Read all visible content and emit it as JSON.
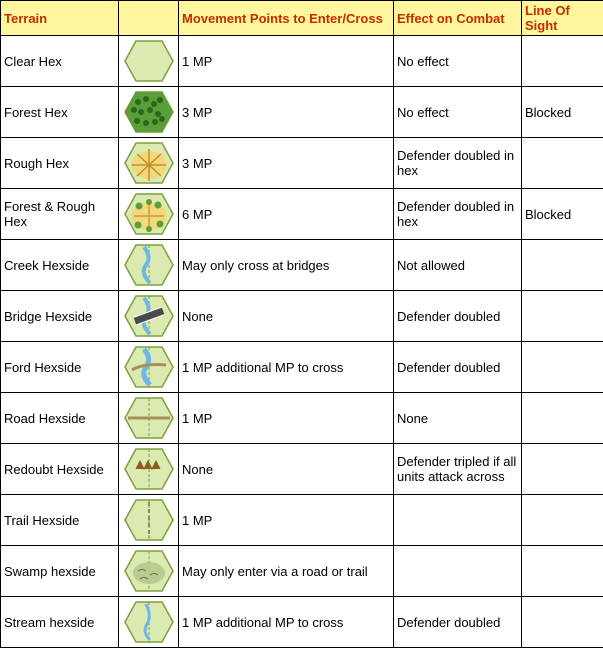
{
  "table": {
    "header": {
      "bg": "#fff69e",
      "color": "#c62d00",
      "columns": [
        "Terrain",
        "",
        "Movement Points to Enter/Cross",
        "Effect on Combat",
        "Line Of Sight"
      ]
    },
    "colors": {
      "hex_fill": "#daeab0",
      "hex_stroke": "#7ea03a",
      "forest_fill": "#5a9e3a",
      "forest_dark": "#2e6619",
      "rough_fill": "#f0d97a",
      "rough_stroke": "#c78a2a",
      "water": "#6eb7e6",
      "bridge": "#4a4a4a",
      "road": "#a8905a",
      "trail": "#8a8a6a",
      "swamp": "#b5c98f",
      "redoubt": "#8b5e1e"
    },
    "rows": [
      {
        "terrain": "Clear Hex",
        "icon": "clear",
        "mp": "1 MP",
        "combat": "No effect",
        "los": ""
      },
      {
        "terrain": "Forest Hex",
        "icon": "forest",
        "mp": "3 MP",
        "combat": "No effect",
        "los": "Blocked"
      },
      {
        "terrain": "Rough Hex",
        "icon": "rough",
        "mp": "3 MP",
        "combat": "Defender doubled in hex",
        "los": ""
      },
      {
        "terrain": "Forest & Rough Hex",
        "icon": "forest_rough",
        "mp": "6 MP",
        "combat": "Defender doubled in hex",
        "los": "Blocked"
      },
      {
        "terrain": "Creek Hexside",
        "icon": "creek",
        "mp": "May only cross at bridges",
        "combat": "Not allowed",
        "los": ""
      },
      {
        "terrain": "Bridge Hexside",
        "icon": "bridge",
        "mp": "None",
        "combat": "Defender doubled",
        "los": ""
      },
      {
        "terrain": "Ford Hexside",
        "icon": "ford",
        "mp": "1 MP additional MP to cross",
        "combat": "Defender doubled",
        "los": ""
      },
      {
        "terrain": "Road Hexside",
        "icon": "road",
        "mp": "1 MP",
        "combat": "None",
        "los": ""
      },
      {
        "terrain": "Redoubt Hexside",
        "icon": "redoubt",
        "mp": "None",
        "combat": "Defender tripled if all units attack across",
        "los": ""
      },
      {
        "terrain": "Trail Hexside",
        "icon": "trail",
        "mp": "1 MP",
        "combat": "",
        "los": ""
      },
      {
        "terrain": "Swamp hexside",
        "icon": "swamp",
        "mp": "May only enter via a road or trail",
        "combat": "",
        "los": ""
      },
      {
        "terrain": "Stream hexside",
        "icon": "stream",
        "mp": "1 MP additional MP to cross",
        "combat": "Defender doubled",
        "los": ""
      }
    ]
  }
}
